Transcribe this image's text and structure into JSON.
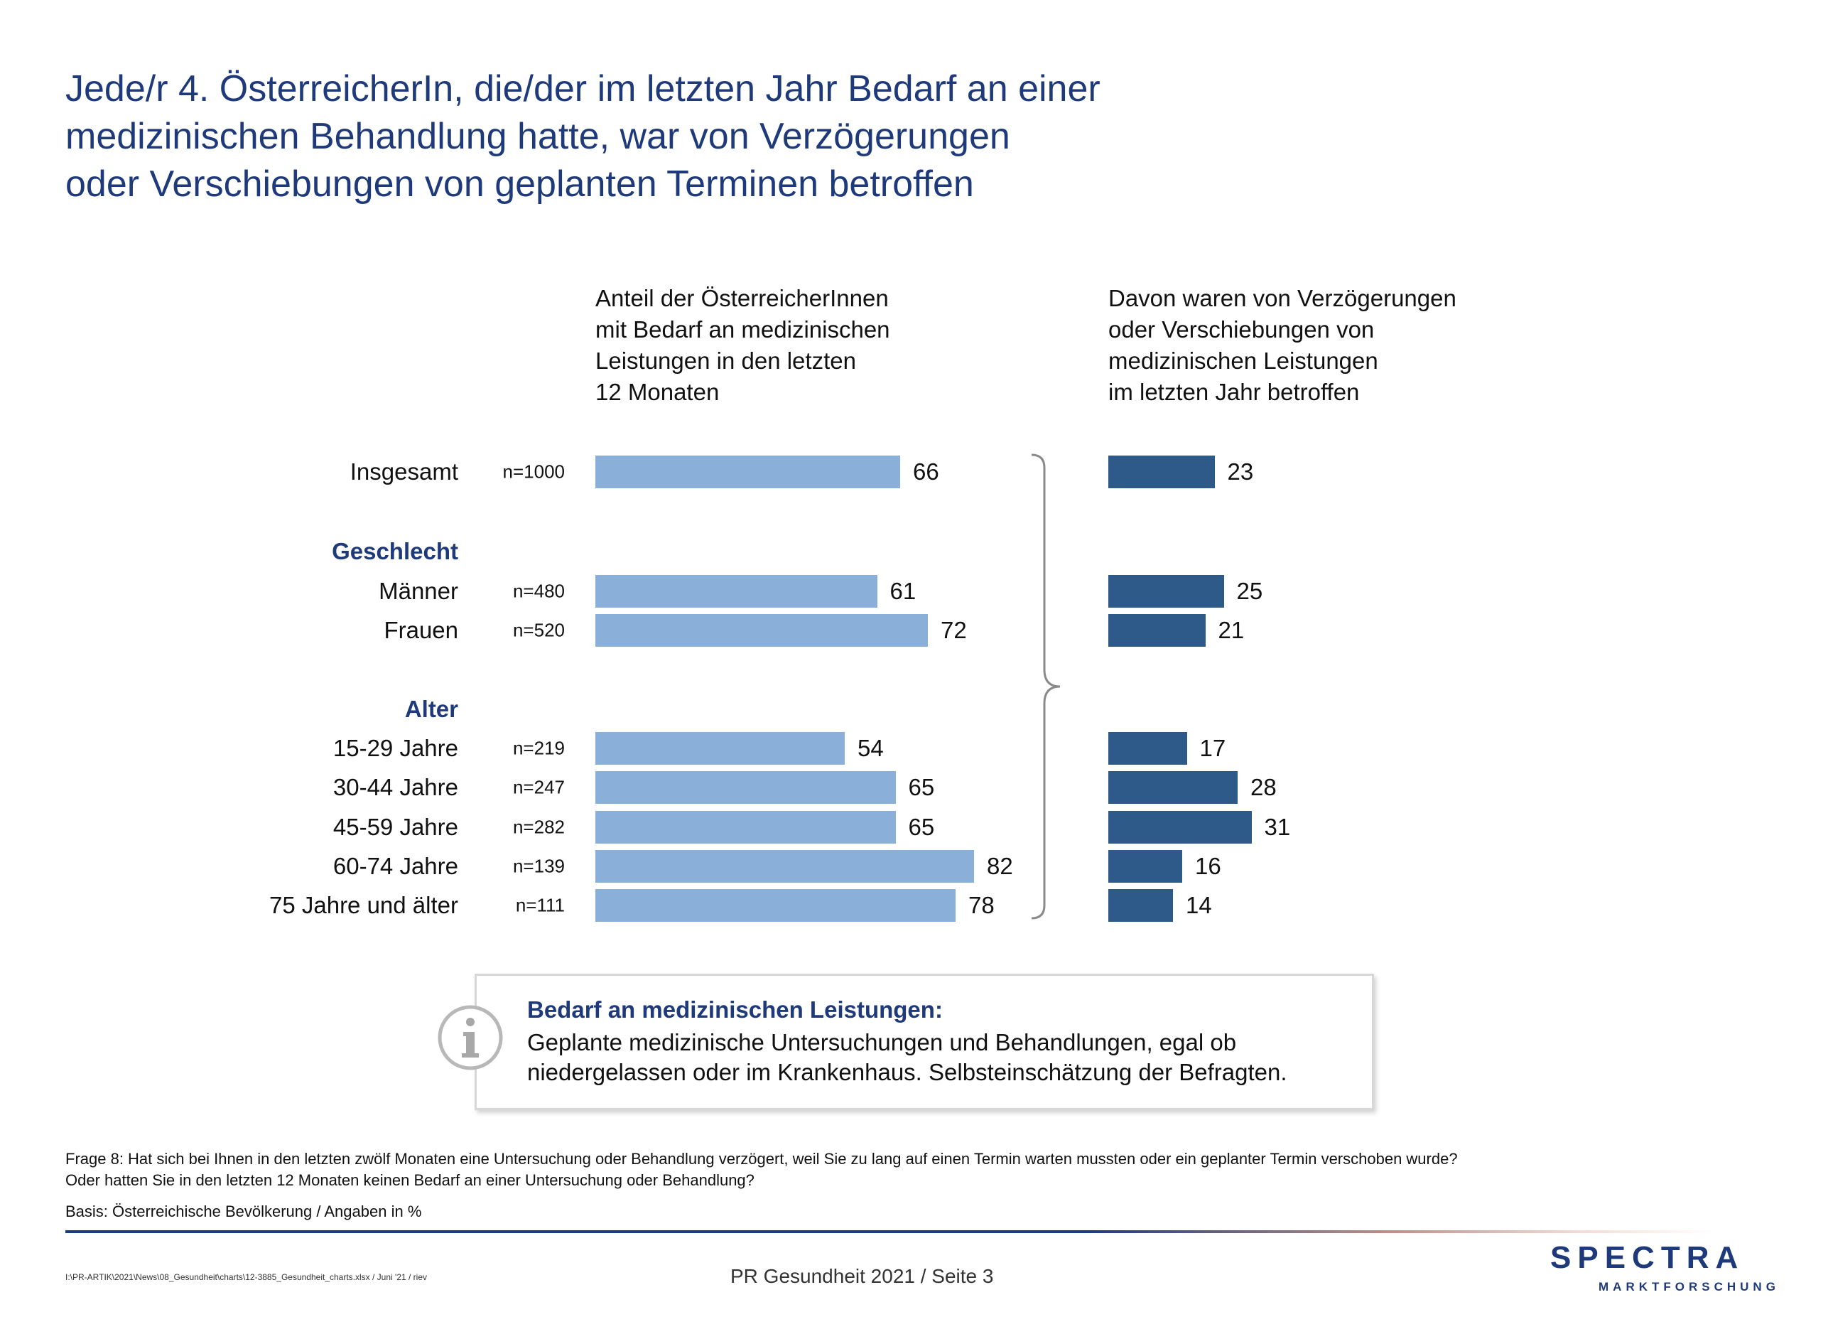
{
  "title_lines": [
    "Jede/r 4. ÖsterreicherIn, die/der im letzten Jahr Bedarf an einer",
    "medizinischen Behandlung hatte, war von Verzögerungen",
    "oder Verschiebungen von geplanten Terminen betroffen"
  ],
  "column_headers": {
    "left": [
      "Anteil der ÖsterreicherInnen",
      "mit Bedarf an medizinischen",
      "Leistungen in den letzten",
      "12 Monaten"
    ],
    "right": [
      "Davon waren von Verzögerungen",
      "oder Verschiebungen von",
      "medizinischen Leistungen",
      "im letzten Jahr betroffen"
    ]
  },
  "colors": {
    "bar_left": "#8aafd9",
    "bar_right": "#2d5a88",
    "title": "#1f3a7a",
    "group_label": "#1f3a7a"
  },
  "chart_data": {
    "type": "bar",
    "orientation": "horizontal",
    "xlim": [
      0,
      100
    ],
    "rows": [
      {
        "label": "Insgesamt",
        "n": "n=1000",
        "need": 66,
        "delayed": 23,
        "group_label": false
      },
      {
        "label": "Geschlecht",
        "group_label": true
      },
      {
        "label": "Männer",
        "n": "n=480",
        "need": 61,
        "delayed": 25,
        "group_label": false
      },
      {
        "label": "Frauen",
        "n": "n=520",
        "need": 72,
        "delayed": 21,
        "group_label": false
      },
      {
        "label": "Alter",
        "group_label": true
      },
      {
        "label": "15-29 Jahre",
        "n": "n=219",
        "need": 54,
        "delayed": 17,
        "group_label": false
      },
      {
        "label": "30-44 Jahre",
        "n": "n=247",
        "need": 65,
        "delayed": 28,
        "group_label": false
      },
      {
        "label": "45-59 Jahre",
        "n": "n=282",
        "need": 65,
        "delayed": 31,
        "group_label": false
      },
      {
        "label": "60-74 Jahre",
        "n": "n=139",
        "need": 82,
        "delayed": 16,
        "group_label": false
      },
      {
        "label": "75 Jahre und älter",
        "n": "n=111",
        "need": 78,
        "delayed": 14,
        "group_label": false
      }
    ]
  },
  "info_box": {
    "icon": "info-icon",
    "title": "Bedarf an medizinischen Leistungen:",
    "text_lines": [
      "Geplante medizinische Untersuchungen und Behandlungen, egal ob",
      "niedergelassen oder im Krankenhaus. Selbsteinschätzung der Befragten."
    ]
  },
  "footnote_lines": [
    "Frage 8: Hat sich bei Ihnen in den letzten zwölf Monaten eine Untersuchung oder Behandlung verzögert, weil Sie zu lang auf einen Termin warten mussten oder ein geplanter Termin verschoben wurde?",
    "Oder hatten Sie in den letzten 12 Monaten keinen Bedarf an einer Untersuchung oder Behandlung?"
  ],
  "basis": "Basis: Österreichische Bevölkerung / Angaben in %",
  "file_path": "I:\\PR-ARTIK\\2021\\News\\08_Gesundheit\\charts\\12-3885_Gesundheit_charts.xlsx / Juni '21 / riev",
  "page_info": "PR Gesundheit 2021  /  Seite  3",
  "logo": {
    "main": "SPECTRA",
    "sub": "MARKTFORSCHUNG"
  }
}
